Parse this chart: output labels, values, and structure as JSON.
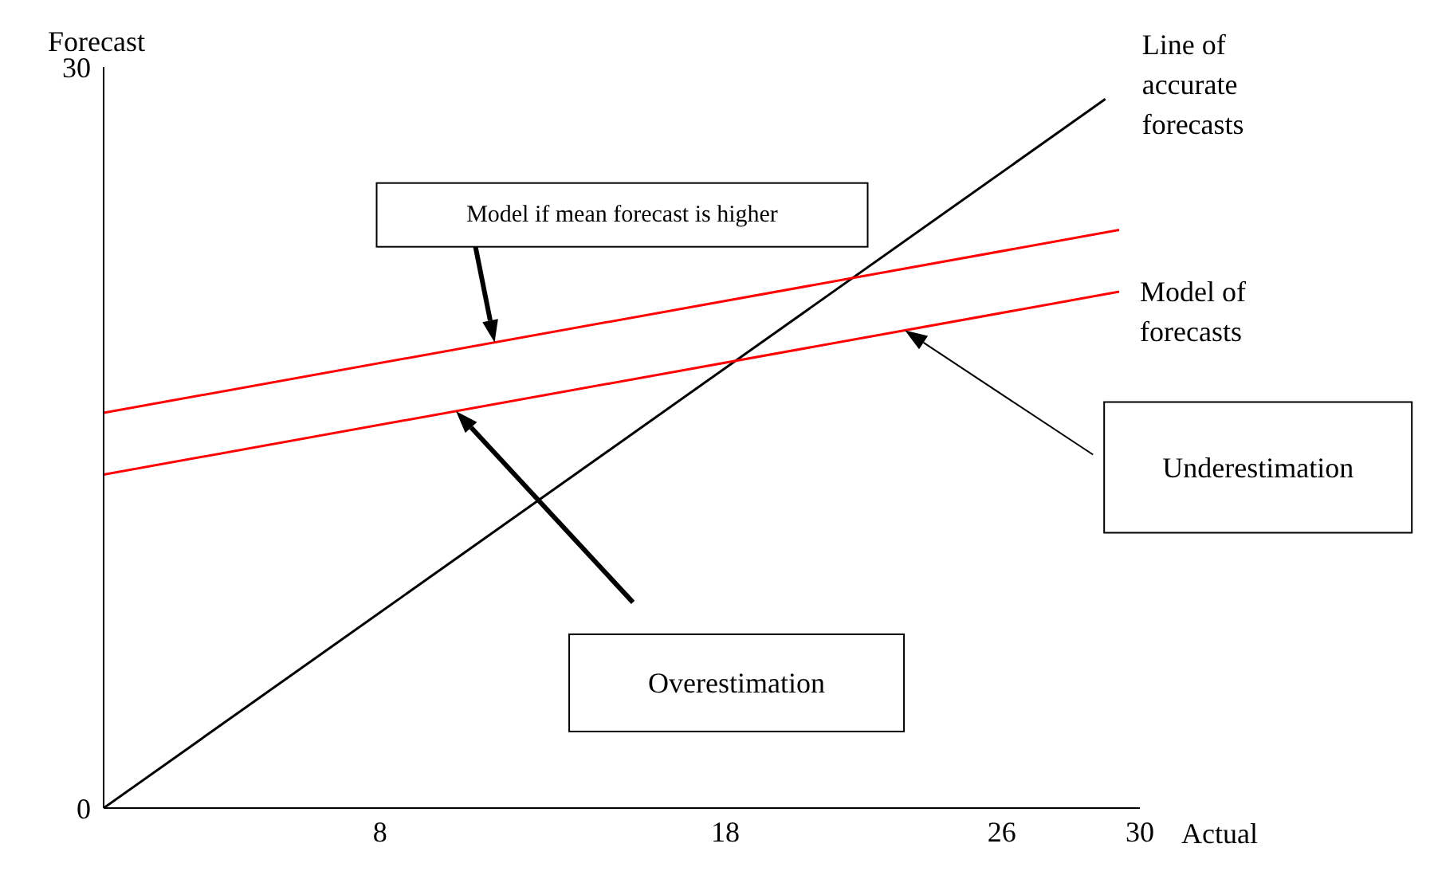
{
  "chart_data": {
    "type": "line",
    "xlabel": "Actual",
    "ylabel": "Forecast",
    "xlim": [
      0,
      30
    ],
    "ylim": [
      0,
      30
    ],
    "xticks": [
      8,
      18,
      26,
      30
    ],
    "yticks": [
      0,
      30
    ],
    "series": [
      {
        "name": "Line of accurate forecasts",
        "color": "#000000",
        "x": [
          0,
          29
        ],
        "values": [
          0,
          28.7
        ]
      },
      {
        "name": "Model of forecasts",
        "color": "#ff0000",
        "x": [
          0,
          29.4
        ],
        "values": [
          13.5,
          20.9
        ]
      },
      {
        "name": "Model if mean forecast is higher",
        "color": "#ff0000",
        "x": [
          0,
          29.4
        ],
        "values": [
          16,
          23.4
        ]
      }
    ],
    "annotations": [
      "Underestimation",
      "Overestimation"
    ]
  }
}
